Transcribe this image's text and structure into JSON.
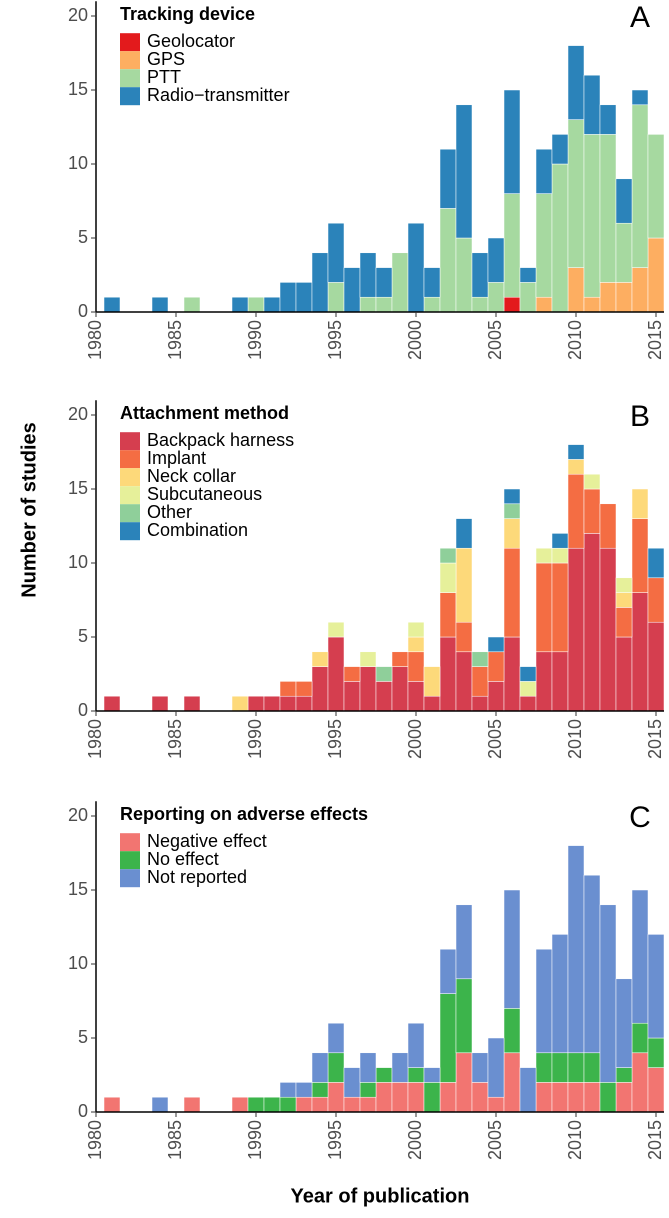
{
  "chart_data": [
    {
      "type": "bar",
      "stacked": true,
      "panel_label": "A",
      "legend_title": "Tracking device",
      "x": [
        1981,
        1982,
        1983,
        1984,
        1985,
        1986,
        1987,
        1988,
        1989,
        1990,
        1991,
        1992,
        1993,
        1994,
        1995,
        1996,
        1997,
        1998,
        1999,
        2000,
        2001,
        2002,
        2003,
        2004,
        2005,
        2006,
        2007,
        2008,
        2009,
        2010,
        2011,
        2012,
        2013,
        2014,
        2015
      ],
      "xlim": [
        1980,
        2015.5
      ],
      "ylim": [
        0,
        21
      ],
      "xticks": [
        1980,
        1985,
        1990,
        1995,
        2000,
        2005,
        2010,
        2015
      ],
      "yticks": [
        0,
        5,
        10,
        15,
        20
      ],
      "series": [
        {
          "name": "Geolocator",
          "color": "#e31a1c",
          "values": [
            0,
            0,
            0,
            0,
            0,
            0,
            0,
            0,
            0,
            0,
            0,
            0,
            0,
            0,
            0,
            0,
            0,
            0,
            0,
            0,
            0,
            0,
            0,
            0,
            0,
            1,
            0,
            0,
            0,
            0,
            0,
            0,
            0,
            0,
            0
          ]
        },
        {
          "name": "GPS",
          "color": "#fdae61",
          "values": [
            0,
            0,
            0,
            0,
            0,
            0,
            0,
            0,
            0,
            0,
            0,
            0,
            0,
            0,
            0,
            0,
            0,
            0,
            0,
            0,
            0,
            0,
            0,
            0,
            0,
            0,
            0,
            1,
            0,
            3,
            1,
            2,
            2,
            3,
            5
          ]
        },
        {
          "name": "PTT",
          "color": "#a6d9a0",
          "values": [
            0,
            0,
            0,
            0,
            0,
            1,
            0,
            0,
            0,
            1,
            0,
            0,
            0,
            0,
            2,
            0,
            1,
            1,
            4,
            0,
            1,
            7,
            5,
            1,
            2,
            7,
            2,
            7,
            10,
            10,
            11,
            10,
            4,
            11,
            7
          ]
        },
        {
          "name": "Radio−transmitter",
          "color": "#2b83ba",
          "values": [
            1,
            0,
            0,
            1,
            0,
            0,
            0,
            0,
            1,
            0,
            1,
            2,
            2,
            4,
            4,
            3,
            3,
            2,
            0,
            6,
            2,
            4,
            9,
            3,
            3,
            7,
            1,
            3,
            2,
            5,
            4,
            2,
            3,
            1,
            0
          ]
        }
      ]
    },
    {
      "type": "bar",
      "stacked": true,
      "panel_label": "B",
      "legend_title": "Attachment method",
      "ylabel": "Number of studies",
      "x": [
        1981,
        1982,
        1983,
        1984,
        1985,
        1986,
        1987,
        1988,
        1989,
        1990,
        1991,
        1992,
        1993,
        1994,
        1995,
        1996,
        1997,
        1998,
        1999,
        2000,
        2001,
        2002,
        2003,
        2004,
        2005,
        2006,
        2007,
        2008,
        2009,
        2010,
        2011,
        2012,
        2013,
        2014,
        2015
      ],
      "xlim": [
        1980,
        2015.5
      ],
      "ylim": [
        0,
        21
      ],
      "xticks": [
        1980,
        1985,
        1990,
        1995,
        2000,
        2005,
        2010,
        2015
      ],
      "yticks": [
        0,
        5,
        10,
        15,
        20
      ],
      "series": [
        {
          "name": "Backpack harness",
          "color": "#d53e4f",
          "values": [
            1,
            0,
            0,
            1,
            0,
            1,
            0,
            0,
            0,
            1,
            1,
            1,
            1,
            3,
            5,
            2,
            3,
            2,
            3,
            2,
            1,
            5,
            4,
            1,
            2,
            5,
            1,
            4,
            4,
            11,
            12,
            11,
            5,
            8,
            6
          ]
        },
        {
          "name": "Implant",
          "color": "#f46d43",
          "values": [
            0,
            0,
            0,
            0,
            0,
            0,
            0,
            0,
            0,
            0,
            0,
            1,
            1,
            0,
            0,
            1,
            0,
            0,
            1,
            2,
            0,
            3,
            2,
            2,
            2,
            6,
            0,
            6,
            6,
            5,
            3,
            3,
            2,
            5,
            3
          ]
        },
        {
          "name": "Neck collar",
          "color": "#fdd97a",
          "values": [
            0,
            0,
            0,
            0,
            0,
            0,
            0,
            0,
            1,
            0,
            0,
            0,
            0,
            1,
            0,
            0,
            0,
            0,
            0,
            1,
            2,
            0,
            5,
            0,
            0,
            2,
            0,
            0,
            0,
            1,
            0,
            0,
            1,
            2,
            0
          ]
        },
        {
          "name": "Subcutaneous",
          "color": "#e6f09a",
          "values": [
            0,
            0,
            0,
            0,
            0,
            0,
            0,
            0,
            0,
            0,
            0,
            0,
            0,
            0,
            1,
            0,
            1,
            0,
            0,
            1,
            0,
            2,
            0,
            0,
            0,
            0,
            1,
            1,
            1,
            0,
            1,
            0,
            1,
            0,
            0
          ]
        },
        {
          "name": "Other",
          "color": "#8fcf9a",
          "values": [
            0,
            0,
            0,
            0,
            0,
            0,
            0,
            0,
            0,
            0,
            0,
            0,
            0,
            0,
            0,
            0,
            0,
            1,
            0,
            0,
            0,
            1,
            0,
            1,
            0,
            1,
            0,
            0,
            0,
            0,
            0,
            0,
            0,
            0,
            0
          ]
        },
        {
          "name": "Combination",
          "color": "#2b83ba",
          "values": [
            0,
            0,
            0,
            0,
            0,
            0,
            0,
            0,
            0,
            0,
            0,
            0,
            0,
            0,
            0,
            0,
            0,
            0,
            0,
            0,
            0,
            0,
            2,
            0,
            1,
            1,
            1,
            0,
            1,
            1,
            0,
            0,
            0,
            0,
            2
          ]
        }
      ]
    },
    {
      "type": "bar",
      "stacked": true,
      "panel_label": "C",
      "legend_title": "Reporting on adverse effects",
      "xlabel": "Year of publication",
      "x": [
        1981,
        1982,
        1983,
        1984,
        1985,
        1986,
        1987,
        1988,
        1989,
        1990,
        1991,
        1992,
        1993,
        1994,
        1995,
        1996,
        1997,
        1998,
        1999,
        2000,
        2001,
        2002,
        2003,
        2004,
        2005,
        2006,
        2007,
        2008,
        2009,
        2010,
        2011,
        2012,
        2013,
        2014,
        2015
      ],
      "xlim": [
        1980,
        2015.5
      ],
      "ylim": [
        0,
        21
      ],
      "xticks": [
        1980,
        1985,
        1990,
        1995,
        2000,
        2005,
        2010,
        2015
      ],
      "yticks": [
        0,
        5,
        10,
        15,
        20
      ],
      "series": [
        {
          "name": "Negative effect",
          "color": "#f27571",
          "values": [
            1,
            0,
            0,
            0,
            0,
            1,
            0,
            0,
            1,
            0,
            0,
            0,
            1,
            1,
            2,
            1,
            1,
            2,
            2,
            2,
            0,
            2,
            4,
            2,
            1,
            4,
            0,
            2,
            2,
            2,
            2,
            0,
            2,
            4,
            3
          ]
        },
        {
          "name": "No effect",
          "color": "#3cb44b",
          "values": [
            0,
            0,
            0,
            0,
            0,
            0,
            0,
            0,
            0,
            1,
            1,
            1,
            0,
            1,
            2,
            0,
            1,
            1,
            0,
            1,
            2,
            6,
            5,
            0,
            0,
            3,
            0,
            2,
            2,
            2,
            2,
            2,
            1,
            2,
            2
          ]
        },
        {
          "name": "Not reported",
          "color": "#6a8fd0",
          "values": [
            0,
            0,
            0,
            1,
            0,
            0,
            0,
            0,
            0,
            0,
            0,
            1,
            1,
            2,
            2,
            2,
            2,
            0,
            2,
            3,
            1,
            3,
            5,
            2,
            4,
            8,
            3,
            7,
            8,
            14,
            12,
            12,
            6,
            9,
            7
          ]
        }
      ]
    }
  ]
}
